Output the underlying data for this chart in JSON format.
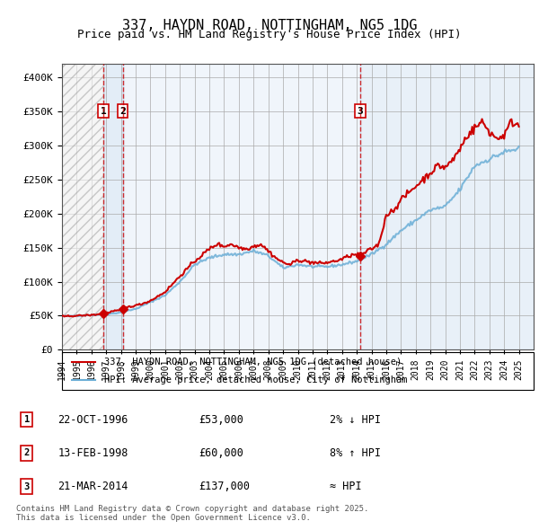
{
  "title_line1": "337, HAYDN ROAD, NOTTINGHAM, NG5 1DG",
  "title_line2": "Price paid vs. HM Land Registry's House Price Index (HPI)",
  "x_start_year": 1994,
  "x_end_year": 2025,
  "y_min": 0,
  "y_max": 420000,
  "y_ticks": [
    0,
    50000,
    100000,
    150000,
    200000,
    250000,
    300000,
    350000,
    400000
  ],
  "y_tick_labels": [
    "£0",
    "£50K",
    "£100K",
    "£150K",
    "£200K",
    "£250K",
    "£300K",
    "£350K",
    "£400K"
  ],
  "sale_dates": [
    "1996-10-22",
    "1998-02-13",
    "2014-03-21"
  ],
  "sale_prices": [
    53000,
    60000,
    137000
  ],
  "sale_labels": [
    "1",
    "2",
    "3"
  ],
  "vline_years": [
    1996.81,
    1998.12,
    2014.22
  ],
  "legend_line1": "337, HAYDN ROAD, NOTTINGHAM, NG5 1DG (detached house)",
  "legend_line2": "HPI: Average price, detached house, City of Nottingham",
  "annotation_data": [
    {
      "label": "1",
      "date": "22-OCT-1996",
      "price": "£53,000",
      "hpi": "2% ↓ HPI"
    },
    {
      "label": "2",
      "date": "13-FEB-1998",
      "price": "£60,000",
      "hpi": "8% ↑ HPI"
    },
    {
      "label": "3",
      "date": "21-MAR-2014",
      "price": "£137,000",
      "hpi": "≈ HPI"
    }
  ],
  "footer": "Contains HM Land Registry data © Crown copyright and database right 2025.\nThis data is licensed under the Open Government Licence v3.0.",
  "hpi_color": "#6baed6",
  "price_color": "#cc0000",
  "bg_color": "#ddeeff",
  "hatch_color": "#cccccc",
  "grid_color": "#aaaaaa",
  "vline_color": "#cc0000"
}
